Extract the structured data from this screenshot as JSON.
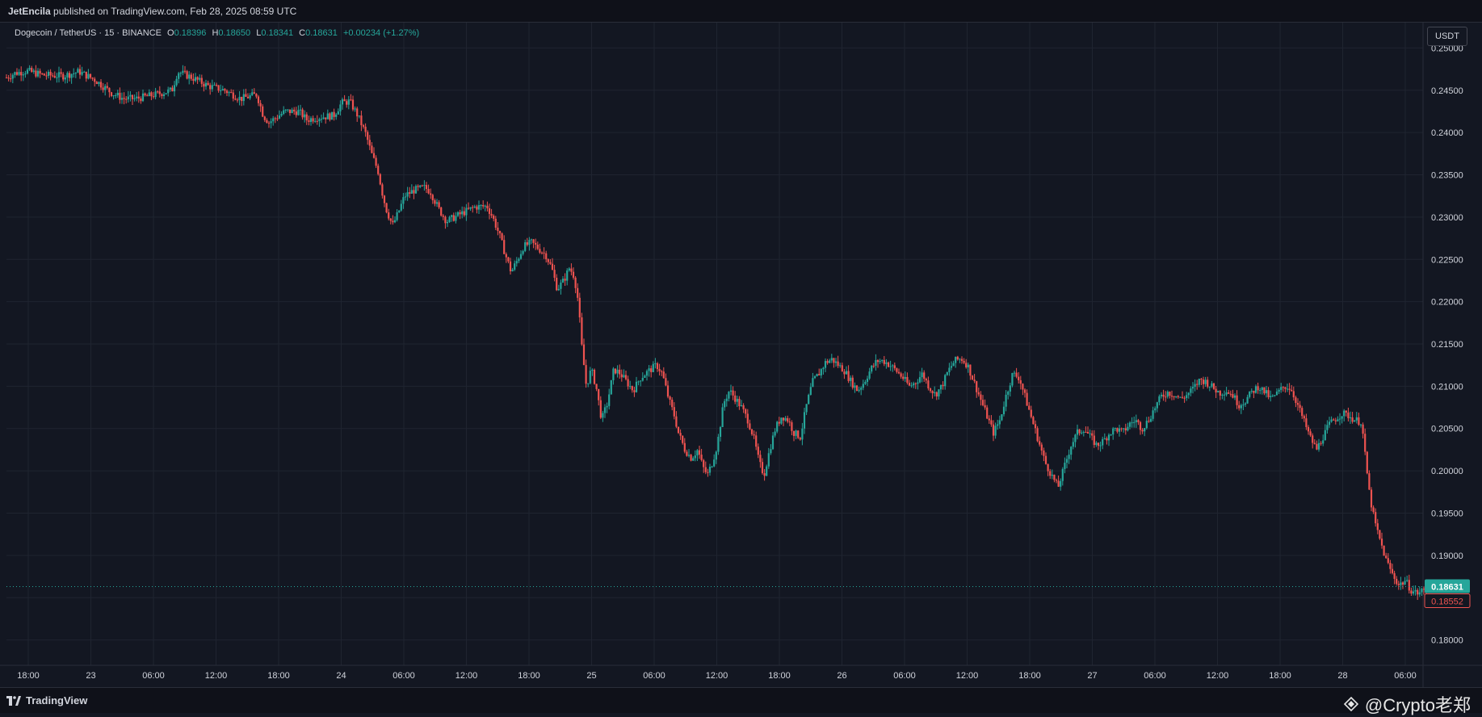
{
  "header": {
    "publisher": "JetEncila",
    "published_text": "published on TradingView.com, Feb 28, 2025 08:59 UTC"
  },
  "legend": {
    "symbol": "Dogecoin / TetherUS · 15 · BINANCE",
    "o_label": "O",
    "o_value": "0.18396",
    "h_label": "H",
    "h_value": "0.18650",
    "l_label": "L",
    "l_value": "0.18341",
    "c_label": "C",
    "c_value": "0.18631",
    "change": "+0.00234 (+1.27%)"
  },
  "unit_button": "USDT",
  "footer": {
    "brand": "TradingView",
    "watermark": "@Crypto老郑"
  },
  "colors": {
    "background": "#131722",
    "up": "#26a69a",
    "down": "#ef5350",
    "grid": "#1f2430"
  },
  "chart_data": {
    "type": "candlestick",
    "symbol": "DOGEUSDT",
    "interval": "15",
    "exchange": "BINANCE",
    "ylim": [
      0.177,
      0.253
    ],
    "y_ticks": [
      "0.25000",
      "0.24500",
      "0.24000",
      "0.23500",
      "0.23000",
      "0.22500",
      "0.22000",
      "0.21500",
      "0.21000",
      "0.20500",
      "0.20000",
      "0.19500",
      "0.19000",
      "0.18500",
      "0.18000"
    ],
    "x_ticks": [
      "18:00",
      "23",
      "06:00",
      "12:00",
      "18:00",
      "24",
      "06:00",
      "12:00",
      "18:00",
      "25",
      "06:00",
      "12:00",
      "18:00",
      "26",
      "06:00",
      "12:00",
      "18:00",
      "27",
      "06:00",
      "12:00",
      "18:00",
      "28",
      "06:00"
    ],
    "last_price": "0.18631",
    "second_price": "0.18552",
    "price_path": [
      [
        0,
        0.2465
      ],
      [
        10,
        0.247
      ],
      [
        25,
        0.2473
      ],
      [
        45,
        0.2468
      ],
      [
        70,
        0.2467
      ],
      [
        90,
        0.2472
      ],
      [
        110,
        0.2462
      ],
      [
        130,
        0.2447
      ],
      [
        145,
        0.244
      ],
      [
        160,
        0.244
      ],
      [
        185,
        0.2445
      ],
      [
        205,
        0.245
      ],
      [
        212,
        0.2472
      ],
      [
        230,
        0.2465
      ],
      [
        250,
        0.2455
      ],
      [
        270,
        0.245
      ],
      [
        290,
        0.244
      ],
      [
        310,
        0.2445
      ],
      [
        318,
        0.242
      ],
      [
        325,
        0.2412
      ],
      [
        345,
        0.2425
      ],
      [
        362,
        0.2425
      ],
      [
        372,
        0.2415
      ],
      [
        385,
        0.2418
      ],
      [
        405,
        0.242
      ],
      [
        415,
        0.2435
      ],
      [
        425,
        0.2437
      ],
      [
        435,
        0.242
      ],
      [
        445,
        0.2398
      ],
      [
        452,
        0.2375
      ],
      [
        460,
        0.2355
      ],
      [
        465,
        0.233
      ],
      [
        470,
        0.231
      ],
      [
        478,
        0.229
      ],
      [
        485,
        0.2305
      ],
      [
        493,
        0.2325
      ],
      [
        505,
        0.2332
      ],
      [
        518,
        0.2335
      ],
      [
        525,
        0.233
      ],
      [
        535,
        0.231
      ],
      [
        545,
        0.2295
      ],
      [
        555,
        0.23
      ],
      [
        565,
        0.2305
      ],
      [
        580,
        0.2312
      ],
      [
        595,
        0.2313
      ],
      [
        602,
        0.23
      ],
      [
        610,
        0.228
      ],
      [
        618,
        0.2255
      ],
      [
        625,
        0.2235
      ],
      [
        633,
        0.225
      ],
      [
        640,
        0.2265
      ],
      [
        650,
        0.227
      ],
      [
        660,
        0.2262
      ],
      [
        668,
        0.2255
      ],
      [
        675,
        0.224
      ],
      [
        682,
        0.2215
      ],
      [
        690,
        0.2225
      ],
      [
        697,
        0.224
      ],
      [
        703,
        0.223
      ],
      [
        708,
        0.22
      ],
      [
        712,
        0.215
      ],
      [
        718,
        0.21
      ],
      [
        724,
        0.212
      ],
      [
        730,
        0.21
      ],
      [
        737,
        0.206
      ],
      [
        744,
        0.208
      ],
      [
        752,
        0.212
      ],
      [
        760,
        0.2115
      ],
      [
        768,
        0.2105
      ],
      [
        776,
        0.2095
      ],
      [
        785,
        0.211
      ],
      [
        795,
        0.2118
      ],
      [
        805,
        0.2125
      ],
      [
        812,
        0.2115
      ],
      [
        820,
        0.2085
      ],
      [
        827,
        0.2065
      ],
      [
        832,
        0.2045
      ],
      [
        840,
        0.2025
      ],
      [
        848,
        0.2015
      ],
      [
        856,
        0.2025
      ],
      [
        862,
        0.2005
      ],
      [
        868,
        0.1995
      ],
      [
        874,
        0.201
      ],
      [
        880,
        0.203
      ],
      [
        888,
        0.208
      ],
      [
        895,
        0.2095
      ],
      [
        903,
        0.2085
      ],
      [
        910,
        0.2075
      ],
      [
        918,
        0.206
      ],
      [
        925,
        0.204
      ],
      [
        932,
        0.201
      ],
      [
        938,
        0.1995
      ],
      [
        945,
        0.2025
      ],
      [
        952,
        0.205
      ],
      [
        960,
        0.2065
      ],
      [
        968,
        0.206
      ],
      [
        975,
        0.2045
      ],
      [
        983,
        0.204
      ],
      [
        990,
        0.2075
      ],
      [
        998,
        0.2105
      ],
      [
        1006,
        0.2115
      ],
      [
        1014,
        0.2128
      ],
      [
        1022,
        0.2132
      ],
      [
        1030,
        0.2125
      ],
      [
        1038,
        0.2118
      ],
      [
        1046,
        0.2105
      ],
      [
        1054,
        0.2095
      ],
      [
        1062,
        0.2105
      ],
      [
        1070,
        0.212
      ],
      [
        1078,
        0.213
      ],
      [
        1086,
        0.213
      ],
      [
        1094,
        0.2125
      ],
      [
        1102,
        0.2118
      ],
      [
        1110,
        0.211
      ],
      [
        1118,
        0.21
      ],
      [
        1126,
        0.2105
      ],
      [
        1134,
        0.2115
      ],
      [
        1142,
        0.21
      ],
      [
        1150,
        0.209
      ],
      [
        1158,
        0.21
      ],
      [
        1166,
        0.2118
      ],
      [
        1174,
        0.213
      ],
      [
        1182,
        0.2133
      ],
      [
        1190,
        0.2125
      ],
      [
        1198,
        0.2105
      ],
      [
        1206,
        0.2085
      ],
      [
        1214,
        0.2065
      ],
      [
        1222,
        0.2045
      ],
      [
        1230,
        0.206
      ],
      [
        1238,
        0.209
      ],
      [
        1246,
        0.2115
      ],
      [
        1254,
        0.211
      ],
      [
        1262,
        0.2085
      ],
      [
        1270,
        0.206
      ],
      [
        1278,
        0.2035
      ],
      [
        1286,
        0.201
      ],
      [
        1294,
        0.1995
      ],
      [
        1302,
        0.198
      ],
      [
        1310,
        0.2005
      ],
      [
        1318,
        0.203
      ],
      [
        1326,
        0.2045
      ],
      [
        1334,
        0.205
      ],
      [
        1342,
        0.204
      ],
      [
        1350,
        0.203
      ],
      [
        1358,
        0.2035
      ],
      [
        1366,
        0.2045
      ],
      [
        1374,
        0.205
      ],
      [
        1382,
        0.2045
      ],
      [
        1390,
        0.2055
      ],
      [
        1398,
        0.206
      ],
      [
        1406,
        0.205
      ],
      [
        1414,
        0.206
      ],
      [
        1422,
        0.2075
      ],
      [
        1430,
        0.2088
      ],
      [
        1438,
        0.2093
      ],
      [
        1446,
        0.209
      ],
      [
        1454,
        0.2085
      ],
      [
        1462,
        0.209
      ],
      [
        1470,
        0.2098
      ],
      [
        1478,
        0.2108
      ],
      [
        1486,
        0.2105
      ],
      [
        1494,
        0.2098
      ],
      [
        1502,
        0.2092
      ],
      [
        1510,
        0.2095
      ],
      [
        1518,
        0.209
      ],
      [
        1526,
        0.2078
      ],
      [
        1534,
        0.2083
      ],
      [
        1542,
        0.2093
      ],
      [
        1550,
        0.21
      ],
      [
        1558,
        0.2093
      ],
      [
        1566,
        0.2085
      ],
      [
        1574,
        0.2092
      ],
      [
        1582,
        0.21
      ],
      [
        1590,
        0.2098
      ],
      [
        1598,
        0.208
      ],
      [
        1606,
        0.206
      ],
      [
        1614,
        0.204
      ],
      [
        1622,
        0.2025
      ],
      [
        1630,
        0.204
      ],
      [
        1638,
        0.2055
      ],
      [
        1646,
        0.2062
      ],
      [
        1654,
        0.2068
      ],
      [
        1662,
        0.2065
      ],
      [
        1670,
        0.206
      ],
      [
        1678,
        0.2058
      ],
      [
        1682,
        0.202
      ],
      [
        1688,
        0.197
      ],
      [
        1694,
        0.194
      ],
      [
        1700,
        0.192
      ],
      [
        1708,
        0.1895
      ],
      [
        1716,
        0.1878
      ],
      [
        1724,
        0.1865
      ],
      [
        1732,
        0.187
      ],
      [
        1740,
        0.1858
      ],
      [
        1748,
        0.1855
      ],
      [
        1756,
        0.186
      ],
      [
        1761,
        0.1863
      ]
    ]
  }
}
